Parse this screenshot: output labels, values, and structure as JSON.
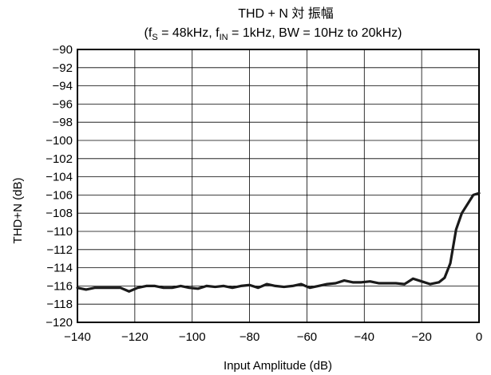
{
  "chart_data": {
    "type": "line",
    "title": "THD + N 対 振幅",
    "subtitle": {
      "fs_base": "(f",
      "fs_sub": "S",
      "fs_rest": " = 48kHz, f",
      "fin_sub": "IN",
      "fin_rest": " = 1kHz, BW = 10Hz to 20kHz)"
    },
    "xlabel": "Input Amplitude (dB)",
    "ylabel": "THD+N (dB)",
    "xlim": [
      -140,
      0
    ],
    "ylim": [
      -120,
      -90
    ],
    "xticks": [
      -140,
      -120,
      -100,
      -80,
      -60,
      -40,
      -20,
      0
    ],
    "xtick_labels": [
      "−140",
      "−120",
      "−100",
      "−80",
      "−60",
      "−40",
      "−20",
      "0"
    ],
    "yticks": [
      -90,
      -92,
      -94,
      -96,
      -98,
      -100,
      -102,
      -104,
      -106,
      -108,
      -110,
      -112,
      -114,
      -116,
      -118,
      -120
    ],
    "ytick_labels": [
      "−90",
      "−92",
      "−94",
      "−96",
      "−98",
      "−100",
      "−102",
      "−104",
      "−106",
      "−108",
      "−110",
      "−112",
      "−114",
      "−116",
      "−118",
      "−120"
    ],
    "grid": true,
    "series": [
      {
        "x": [
          -140,
          -137,
          -134,
          -131,
          -128,
          -125,
          -122,
          -119,
          -116,
          -113,
          -110,
          -107,
          -104,
          -101,
          -98,
          -95,
          -92,
          -89,
          -86,
          -83,
          -80,
          -77,
          -74,
          -71,
          -68,
          -65,
          -62,
          -59,
          -56,
          -53,
          -50,
          -47,
          -44,
          -41,
          -38,
          -35,
          -32,
          -29,
          -26,
          -23,
          -20,
          -17,
          -14,
          -12,
          -10,
          -8,
          -6,
          -4,
          -2,
          0
        ],
        "y": [
          -116.2,
          -116.4,
          -116.2,
          -116.2,
          -116.2,
          -116.2,
          -116.6,
          -116.2,
          -116.0,
          -116.0,
          -116.2,
          -116.2,
          -116.0,
          -116.2,
          -116.3,
          -116.0,
          -116.1,
          -116.0,
          -116.2,
          -116.0,
          -115.9,
          -116.2,
          -115.8,
          -116.0,
          -116.1,
          -116.0,
          -115.8,
          -116.2,
          -116.0,
          -115.8,
          -115.7,
          -115.4,
          -115.6,
          -115.6,
          -115.5,
          -115.7,
          -115.7,
          -115.7,
          -115.8,
          -115.2,
          -115.5,
          -115.8,
          -115.6,
          -115.1,
          -113.5,
          -109.8,
          -108.0,
          -107.0,
          -106.0,
          -105.8
        ]
      }
    ],
    "line_color": "#1a1a1a"
  }
}
